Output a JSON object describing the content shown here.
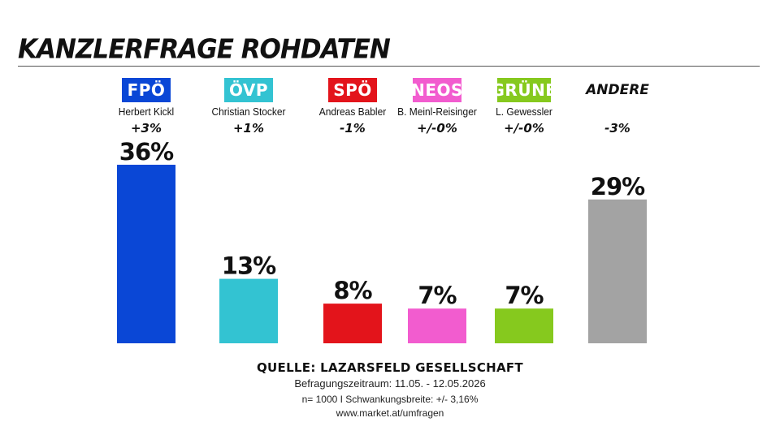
{
  "title": "KANZLERFRAGE ROHDATEN",
  "chart_data": {
    "type": "bar",
    "title": "KANZLERFRAGE ROHDATEN",
    "categories": [
      "FPÖ",
      "ÖVP",
      "SPÖ",
      "NEOS",
      "GRÜNE",
      "ANDERE"
    ],
    "candidates": [
      "Herbert Kickl",
      "Christian Stocker",
      "Andreas Babler",
      "B. Meinl-Reisinger",
      "L. Gewessler",
      ""
    ],
    "changes": [
      "+3%",
      "+1%",
      "-1%",
      "+/-0%",
      "+/-0%",
      "-3%"
    ],
    "values": [
      36,
      13,
      8,
      7,
      7,
      29
    ],
    "value_labels": [
      "36%",
      "13%",
      "8%",
      "7%",
      "7%",
      "29%"
    ],
    "colors": [
      "#0a47d6",
      "#33c3d2",
      "#e3141b",
      "#f25ccf",
      "#86c91e",
      "#a3a3a3"
    ],
    "label_styles": [
      "boxed",
      "boxed",
      "boxed",
      "boxed",
      "boxed",
      "plain"
    ],
    "ylim": [
      0,
      36
    ],
    "grid": false,
    "legend": "none"
  },
  "footer": {
    "source": "QUELLE: LAZARSFELD GESELLSCHAFT",
    "period": "Befragungszeitraum: 11.05. - 12.05.2026",
    "sample": "n= 1000 I Schwankungsbreite: +/- 3,16%",
    "url": "www.market.at/umfragen"
  }
}
